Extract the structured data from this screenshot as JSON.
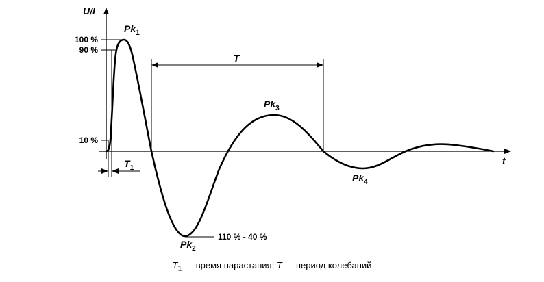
{
  "axes": {
    "y_label": "U/I",
    "x_label": "t"
  },
  "levels": {
    "p100": "100 %",
    "p90": "90 %",
    "p10": "10 %"
  },
  "peaks": {
    "pk1": {
      "base": "Pk",
      "sub": "1"
    },
    "pk2": {
      "base": "Pk",
      "sub": "2"
    },
    "pk3": {
      "base": "Pk",
      "sub": "3"
    },
    "pk4": {
      "base": "Pk",
      "sub": "4"
    }
  },
  "pk2_range": "110 % - 40 %",
  "period": {
    "label": "T"
  },
  "rise_time": {
    "base": "T",
    "sub": "1"
  },
  "caption": {
    "t1_base": "T",
    "t1_sub": "1",
    "t1_desc": " — время нарастания; ",
    "t_sym": "T",
    "t_desc": " — период колебаний"
  },
  "colors": {
    "ink": "#000000",
    "background": "#ffffff"
  }
}
